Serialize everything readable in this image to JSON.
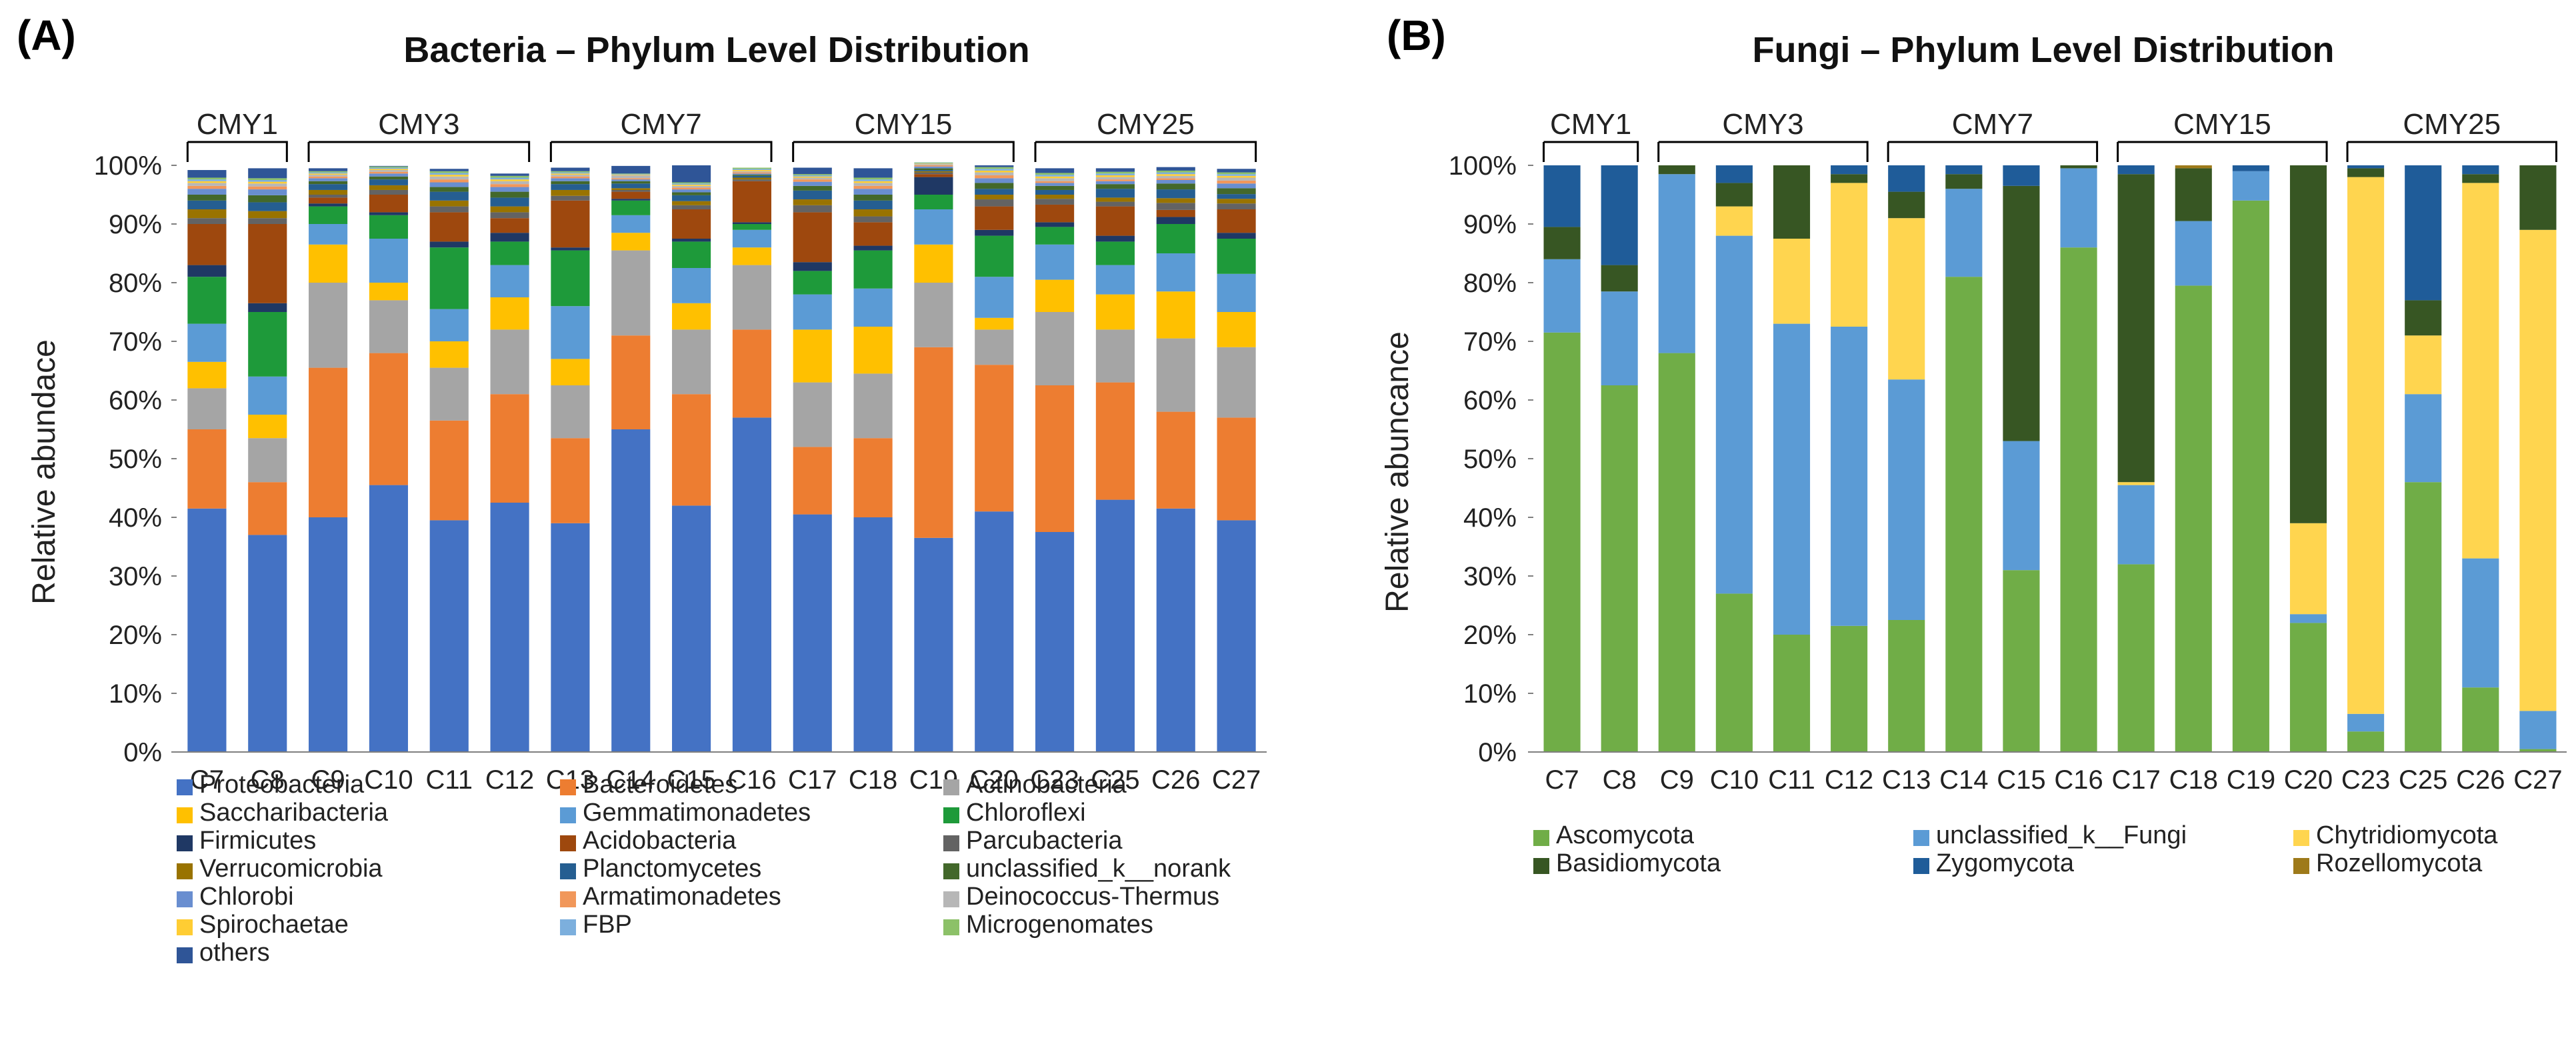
{
  "chart_data": [
    {
      "panel": "(A)",
      "type": "bar",
      "stacked": true,
      "title": "Bacteria – Phylum Level Distribution",
      "xlabel": "",
      "ylabel": "Relative abundace",
      "ylim": [
        0,
        100
      ],
      "yticks": [
        "0%",
        "10%",
        "20%",
        "30%",
        "40%",
        "50%",
        "60%",
        "70%",
        "80%",
        "90%",
        "100%"
      ],
      "categories": [
        "C7",
        "C8",
        "C9",
        "C10",
        "C11",
        "C12",
        "C13",
        "C14",
        "C15",
        "C16",
        "C17",
        "C18",
        "C19",
        "C20",
        "C23",
        "C25",
        "C26",
        "C27"
      ],
      "groups": [
        {
          "name": "CMY1",
          "members": [
            "C7",
            "C8"
          ]
        },
        {
          "name": "CMY3",
          "members": [
            "C9",
            "C10",
            "C11",
            "C12"
          ]
        },
        {
          "name": "CMY7",
          "members": [
            "C13",
            "C14",
            "C15",
            "C16"
          ]
        },
        {
          "name": "CMY15",
          "members": [
            "C17",
            "C18",
            "C19",
            "C20"
          ]
        },
        {
          "name": "CMY25",
          "members": [
            "C23",
            "C25",
            "C26",
            "C27"
          ]
        }
      ],
      "legend_position": "bottom",
      "series": [
        {
          "name": "Proteobacteria",
          "color": "#4472C4",
          "values": [
            41.5,
            37,
            40,
            45.5,
            39.5,
            42.5,
            39,
            55,
            42,
            57,
            40.5,
            40,
            36.5,
            41,
            37.5,
            43,
            41.5,
            39.5
          ]
        },
        {
          "name": "Bacteroidetes",
          "color": "#ED7D31",
          "values": [
            13.5,
            9,
            25.5,
            22.5,
            17,
            18.5,
            14.5,
            16,
            19,
            15,
            11.5,
            13.5,
            32.5,
            25,
            25,
            20,
            16.5,
            17.5
          ]
        },
        {
          "name": "Actinobacteria",
          "color": "#A5A5A5",
          "values": [
            7,
            7.5,
            14.5,
            9,
            9,
            11,
            9,
            14.5,
            11,
            11,
            11,
            11,
            11,
            6,
            12.5,
            9,
            12.5,
            12
          ]
        },
        {
          "name": "Saccharibacteria",
          "color": "#FFC000",
          "values": [
            4.5,
            4,
            6.5,
            3,
            4.5,
            5.5,
            4.5,
            3,
            4.5,
            3,
            9,
            8,
            6.5,
            2,
            5.5,
            6,
            8,
            6
          ]
        },
        {
          "name": "Gemmatimonadetes",
          "color": "#5B9BD5",
          "values": [
            6.5,
            6.5,
            3.5,
            7.5,
            5.5,
            5.5,
            9,
            3,
            6,
            3,
            6,
            6.5,
            6,
            7,
            6,
            5,
            6.5,
            6.5
          ]
        },
        {
          "name": "Chloroflexi",
          "color": "#1E9A3A",
          "values": [
            8,
            11,
            3,
            4,
            10.5,
            4,
            9.5,
            2.5,
            4.5,
            1,
            4,
            6.5,
            2.5,
            7,
            3,
            4,
            5,
            6
          ]
        },
        {
          "name": "Firmicutes",
          "color": "#1F3864",
          "values": [
            2,
            1.5,
            0.5,
            0.5,
            1,
            1.5,
            0.5,
            0.3,
            0.5,
            0.3,
            1.5,
            0.8,
            3,
            1,
            0.8,
            1,
            1.2,
            1
          ]
        },
        {
          "name": "Acidobacteria",
          "color": "#9E480E",
          "values": [
            7,
            13.5,
            1,
            3,
            5,
            2.5,
            8,
            1.2,
            5,
            7,
            8.5,
            4,
            0.5,
            4,
            3,
            5,
            1.2,
            4
          ]
        },
        {
          "name": "Parcubacteria",
          "color": "#636363",
          "values": [
            1,
            1,
            0.5,
            0.8,
            1,
            1,
            0.8,
            0.3,
            0.7,
            0.3,
            1.2,
            1,
            0.3,
            1.2,
            1,
            0.8,
            1.2,
            1
          ]
        },
        {
          "name": "Verrucomicrobia",
          "color": "#997300",
          "values": [
            1.5,
            1.2,
            0.8,
            0.8,
            1,
            1,
            1,
            0.3,
            0.7,
            0.3,
            1,
            1.2,
            0.2,
            0.8,
            0.7,
            0.7,
            0.8,
            0.8
          ]
        },
        {
          "name": "Planctomycetes",
          "color": "#255E91",
          "values": [
            1.5,
            1.5,
            1,
            1,
            1.5,
            1.5,
            1,
            0.8,
            1,
            0.3,
            1.5,
            1.5,
            0.2,
            1,
            0.8,
            1.5,
            1.5,
            0.8
          ]
        },
        {
          "name": "unclassified_k__norank",
          "color": "#43682B",
          "values": [
            1,
            1.2,
            0.5,
            0.5,
            0.8,
            1,
            0.5,
            0.4,
            0.5,
            0.2,
            0.8,
            1,
            0.3,
            1,
            0.7,
            0.8,
            1,
            1
          ]
        },
        {
          "name": "Chlorobi",
          "color": "#698ED0",
          "values": [
            1,
            1,
            0.5,
            0.5,
            0.8,
            0.8,
            0.5,
            0.3,
            0.5,
            0.2,
            0.7,
            1,
            0.3,
            0.8,
            0.5,
            0.5,
            0.6,
            0.8
          ]
        },
        {
          "name": "Armatimonadetes",
          "color": "#F1975A",
          "values": [
            0.5,
            0.5,
            0.3,
            0.3,
            0.5,
            0.5,
            0.3,
            0.2,
            0.3,
            0.2,
            0.4,
            0.5,
            0.2,
            0.5,
            0.3,
            0.3,
            0.3,
            0.5
          ]
        },
        {
          "name": "Deinococcus-Thermus",
          "color": "#B7B7B7",
          "values": [
            0.5,
            0.5,
            0.3,
            0.3,
            0.5,
            0.5,
            0.3,
            0.5,
            0.3,
            0.2,
            0.3,
            0.5,
            0.2,
            0.5,
            0.5,
            0.4,
            0.4,
            0.5
          ]
        },
        {
          "name": "Spirochaetae",
          "color": "#FFCD33",
          "values": [
            0.3,
            0.3,
            0.2,
            0.2,
            0.3,
            0.3,
            0.2,
            0.1,
            0.2,
            0.2,
            0.2,
            0.3,
            0.1,
            0.3,
            0.3,
            0.3,
            0.3,
            0.3
          ]
        },
        {
          "name": "FBP",
          "color": "#7CAFDD",
          "values": [
            0.3,
            0.3,
            0.2,
            0.2,
            0.3,
            0.3,
            0.2,
            0.1,
            0.2,
            0.2,
            0.2,
            0.3,
            0.1,
            0.3,
            0.3,
            0.3,
            0.3,
            0.3
          ]
        },
        {
          "name": "Microgenomates",
          "color": "#8CC168",
          "values": [
            0.3,
            0.3,
            0.2,
            0.2,
            0.3,
            0.3,
            0.2,
            0.1,
            0.2,
            0.2,
            0.2,
            0.3,
            0.1,
            0.3,
            0.3,
            0.3,
            0.3,
            0.3
          ]
        },
        {
          "name": "others",
          "color": "#2F5597",
          "values": [
            1.3,
            1.7,
            0.5,
            0.1,
            0.4,
            0.4,
            0.6,
            1.3,
            2.9,
            0.0,
            1.1,
            1.6,
            0.0,
            0.3,
            0.8,
            0.6,
            0.6,
            0.6
          ]
        }
      ]
    },
    {
      "panel": "(B)",
      "type": "bar",
      "stacked": true,
      "title": "Fungi – Phylum Level Distribution",
      "xlabel": "",
      "ylabel": "Relative abuncance",
      "ylim": [
        0,
        100
      ],
      "yticks": [
        "0%",
        "10%",
        "20%",
        "30%",
        "40%",
        "50%",
        "60%",
        "70%",
        "80%",
        "90%",
        "100%"
      ],
      "categories": [
        "C7",
        "C8",
        "C9",
        "C10",
        "C11",
        "C12",
        "C13",
        "C14",
        "C15",
        "C16",
        "C17",
        "C18",
        "C19",
        "C20",
        "C23",
        "C25",
        "C26",
        "C27"
      ],
      "groups": [
        {
          "name": "CMY1",
          "members": [
            "C7",
            "C8"
          ]
        },
        {
          "name": "CMY3",
          "members": [
            "C9",
            "C10",
            "C11",
            "C12"
          ]
        },
        {
          "name": "CMY7",
          "members": [
            "C13",
            "C14",
            "C15",
            "C16"
          ]
        },
        {
          "name": "CMY15",
          "members": [
            "C17",
            "C18",
            "C19",
            "C20"
          ]
        },
        {
          "name": "CMY25",
          "members": [
            "C23",
            "C25",
            "C26",
            "C27"
          ]
        }
      ],
      "legend_position": "bottom",
      "series": [
        {
          "name": "Ascomycota",
          "color": "#70AD47",
          "values": [
            71.5,
            62.5,
            68,
            27,
            20,
            21.5,
            22.5,
            81,
            31,
            86,
            32,
            79.5,
            94,
            22,
            3.5,
            46,
            11,
            0.5
          ]
        },
        {
          "name": "unclassified_k__Fungi",
          "color": "#5B9BD5",
          "values": [
            12.5,
            16,
            30.5,
            61,
            53,
            51,
            41,
            15,
            22,
            13.5,
            13.5,
            11,
            5,
            1.5,
            3,
            15,
            22,
            6.5
          ]
        },
        {
          "name": "Chytridiomycota",
          "color": "#FFD54F",
          "values": [
            0,
            0,
            0,
            5,
            14.5,
            24.5,
            27.5,
            0,
            0,
            0,
            0.5,
            0,
            0,
            15.5,
            91.5,
            10,
            64,
            82
          ]
        },
        {
          "name": "Basidiomycota",
          "color": "#375623",
          "values": [
            5.5,
            4.5,
            1.5,
            4,
            12.5,
            1.5,
            4.5,
            2.5,
            43.5,
            0.5,
            52.5,
            9,
            0,
            61,
            1.5,
            6,
            1.5,
            11
          ]
        },
        {
          "name": "Zygomycota",
          "color": "#1F5C99",
          "values": [
            10.5,
            17,
            0,
            3,
            0,
            1.5,
            4.5,
            1.5,
            3.5,
            0,
            1.5,
            0,
            1,
            0,
            0.5,
            23,
            1.5,
            0
          ]
        },
        {
          "name": "Rozellomycota",
          "color": "#9E7A1A",
          "values": [
            0,
            0,
            0,
            0,
            0,
            0,
            0,
            0,
            0,
            0,
            0,
            0.5,
            0,
            0,
            0,
            0,
            0,
            0
          ]
        }
      ]
    }
  ]
}
